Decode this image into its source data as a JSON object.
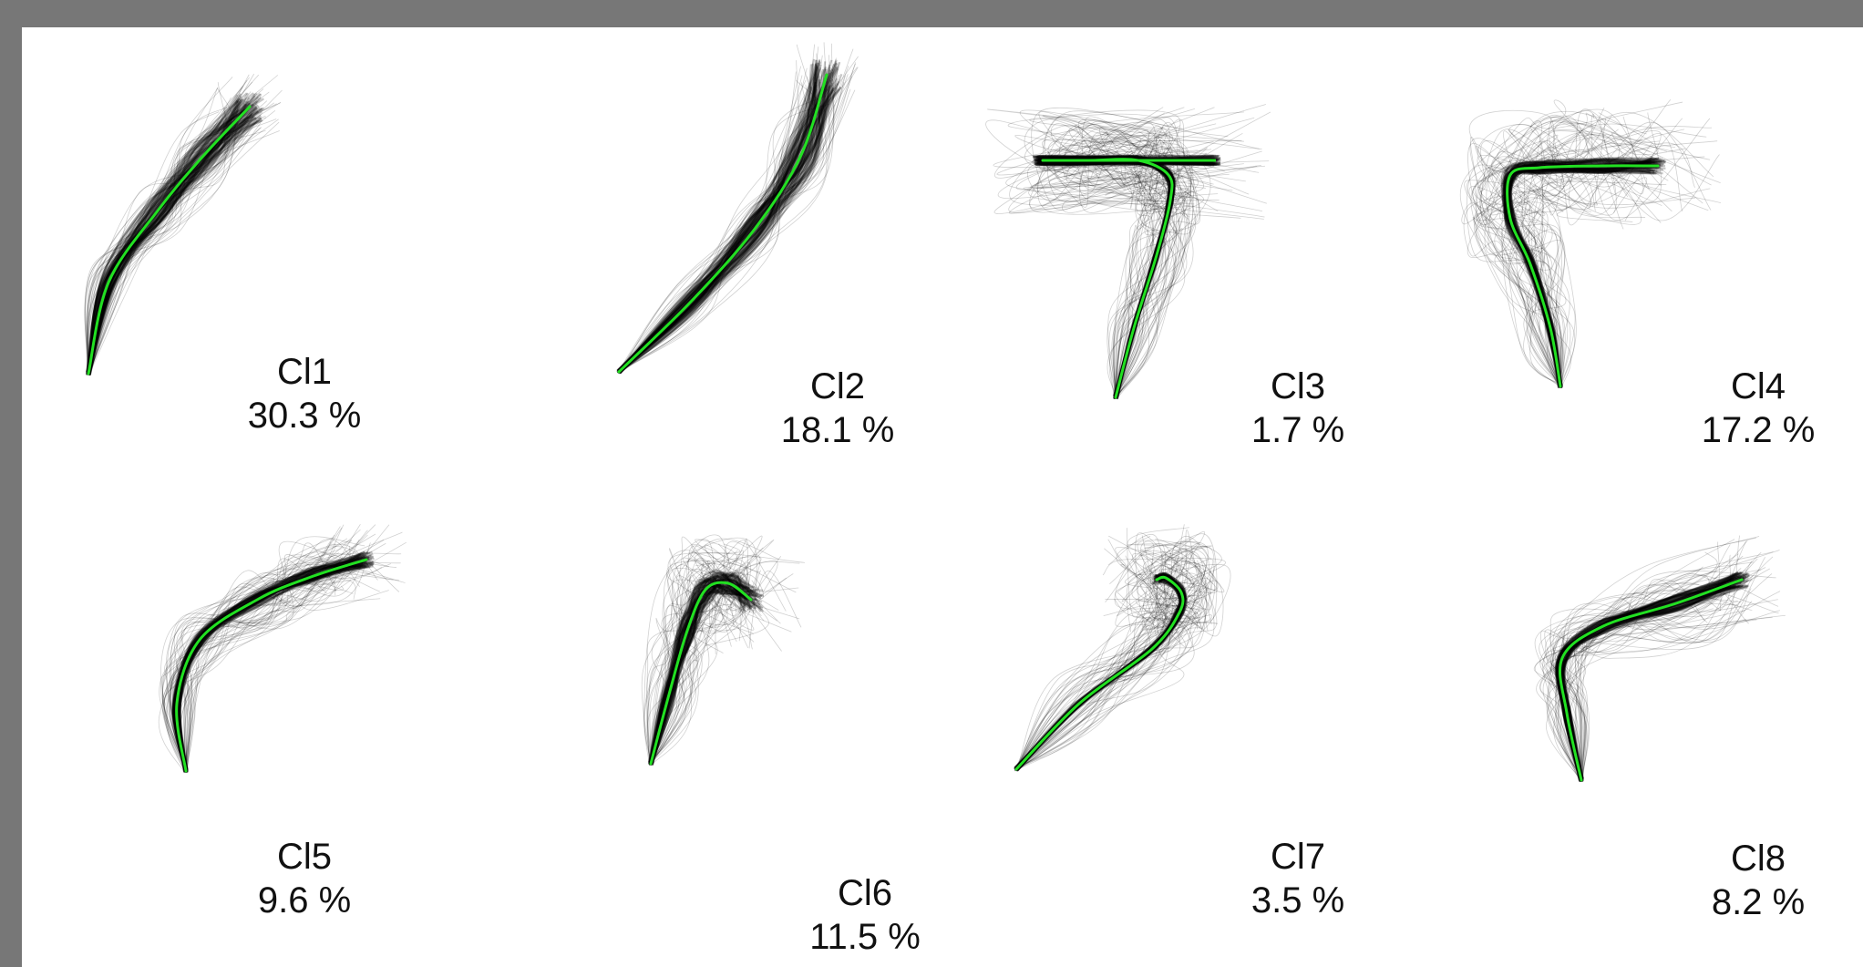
{
  "figure": {
    "panels": [
      {
        "id": "cl1",
        "name": "Cl1",
        "percent": "30.3 %"
      },
      {
        "id": "cl2",
        "name": "Cl2",
        "percent": "18.1 %"
      },
      {
        "id": "cl3",
        "name": "Cl3",
        "percent": "1.7 %"
      },
      {
        "id": "cl4",
        "name": "Cl4",
        "percent": "17.2 %"
      },
      {
        "id": "cl5",
        "name": "Cl5",
        "percent": "9.6 %"
      },
      {
        "id": "cl6",
        "name": "Cl6",
        "percent": "11.5 %"
      },
      {
        "id": "cl7",
        "name": "Cl7",
        "percent": "3.5 %"
      },
      {
        "id": "cl8",
        "name": "Cl8",
        "percent": "8.2 %"
      }
    ],
    "colors": {
      "mean_trajectory": "#22e022",
      "trajectories": "#000000",
      "frame": "#777777",
      "background": "#ffffff"
    }
  }
}
